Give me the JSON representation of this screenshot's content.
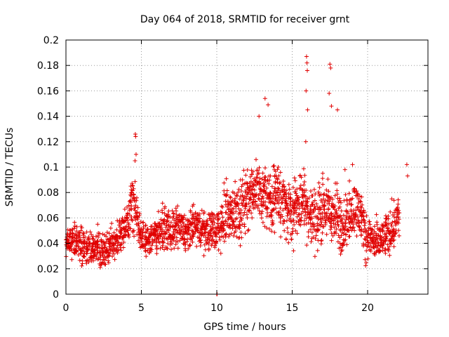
{
  "chart_data": {
    "type": "scatter",
    "title": "Day 064 of 2018, SRMTID for receiver grnt",
    "xlabel": "GPS time / hours",
    "ylabel": "SRMTID / TECUs",
    "xlim": [
      0,
      24
    ],
    "ylim": [
      0,
      0.2
    ],
    "x_ticks": [
      0,
      5,
      10,
      15,
      20
    ],
    "x_tick_labels": [
      "0",
      "5",
      "10",
      "15",
      "20"
    ],
    "y_ticks": [
      0,
      0.02,
      0.04,
      0.06,
      0.08,
      0.1,
      0.12,
      0.14,
      0.16,
      0.18,
      0.2
    ],
    "y_tick_labels": [
      "0",
      "0.02",
      "0.04",
      "0.06",
      "0.08",
      "0.1",
      "0.12",
      "0.14",
      "0.16",
      "0.18",
      "0.2"
    ],
    "grid": true,
    "marker": "plus",
    "color": "#e00000",
    "series": [
      {
        "name": "SRMTID",
        "x": [
          0.0,
          0.1,
          0.2,
          0.3,
          0.4,
          0.5,
          0.6,
          0.7,
          0.8,
          0.9,
          1.0,
          1.1,
          1.2,
          1.3,
          1.4,
          1.5,
          1.6,
          1.7,
          1.8,
          1.9,
          2.0,
          2.1,
          2.2,
          2.3,
          2.4,
          2.5,
          2.6,
          2.7,
          2.8,
          2.9,
          3.0,
          3.1,
          3.2,
          3.3,
          3.4,
          3.5,
          3.6,
          3.7,
          3.8,
          3.9,
          4.0,
          4.1,
          4.2,
          4.3,
          4.4,
          4.5,
          4.6,
          4.7,
          4.8,
          4.9,
          5.0,
          5.1,
          5.2,
          5.3,
          5.4,
          5.5,
          5.6,
          5.7,
          5.8,
          5.9,
          6.0,
          6.1,
          6.2,
          6.3,
          6.4,
          6.5,
          6.6,
          6.7,
          6.8,
          6.9,
          7.0,
          7.1,
          7.2,
          7.3,
          7.4,
          7.5,
          7.6,
          7.7,
          7.8,
          7.9,
          8.0,
          8.1,
          8.2,
          8.3,
          8.4,
          8.5,
          8.6,
          8.7,
          8.8,
          8.9,
          9.0,
          9.1,
          9.2,
          9.3,
          9.4,
          9.5,
          9.6,
          9.7,
          9.8,
          9.9,
          10.0,
          10.1,
          10.2,
          10.3,
          10.4,
          10.5,
          10.6,
          10.7,
          10.8,
          10.9,
          11.0,
          11.1,
          11.2,
          11.3,
          11.4,
          11.5,
          11.6,
          11.7,
          11.8,
          11.9,
          12.0,
          12.1,
          12.2,
          12.3,
          12.4,
          12.5,
          12.6,
          12.7,
          12.8,
          12.9,
          13.0,
          13.1,
          13.2,
          13.3,
          13.4,
          13.5,
          13.6,
          13.7,
          13.8,
          13.9,
          14.0,
          14.1,
          14.2,
          14.3,
          14.4,
          14.5,
          14.6,
          14.7,
          14.8,
          14.9,
          15.0,
          15.1,
          15.2,
          15.3,
          15.4,
          15.5,
          15.6,
          15.7,
          15.8,
          15.9,
          16.0,
          16.1,
          16.2,
          16.3,
          16.4,
          16.5,
          16.6,
          16.7,
          16.8,
          16.9,
          17.0,
          17.1,
          17.2,
          17.3,
          17.4,
          17.5,
          17.6,
          17.7,
          17.8,
          17.9,
          18.0,
          18.1,
          18.2,
          18.3,
          18.4,
          18.5,
          18.6,
          18.7,
          18.8,
          18.9,
          19.0,
          19.1,
          19.2,
          19.3,
          19.4,
          19.5,
          19.6,
          19.7,
          19.8,
          19.9,
          20.0,
          20.1,
          20.2,
          20.3,
          20.4,
          20.5,
          20.6,
          20.7,
          20.8,
          20.9,
          21.0,
          21.1,
          21.2,
          21.3,
          21.4,
          21.5,
          21.6,
          21.7,
          21.8,
          21.9,
          22.0,
          22.1,
          22.2,
          22.3,
          22.4,
          22.5,
          22.6,
          22.7
        ],
        "mid": [
          0.04,
          0.041,
          0.042,
          0.043,
          0.044,
          0.042,
          0.041,
          0.04,
          0.039,
          0.038,
          0.038,
          0.038,
          0.038,
          0.037,
          0.036,
          0.036,
          0.036,
          0.036,
          0.036,
          0.036,
          0.036,
          0.036,
          0.035,
          0.034,
          0.033,
          0.033,
          0.034,
          0.036,
          0.037,
          0.038,
          0.039,
          0.04,
          0.041,
          0.042,
          0.043,
          0.045,
          0.048,
          0.05,
          0.052,
          0.054,
          0.058,
          0.062,
          0.066,
          0.07,
          0.072,
          0.07,
          0.065,
          0.058,
          0.05,
          0.045,
          0.044,
          0.043,
          0.042,
          0.042,
          0.043,
          0.044,
          0.045,
          0.046,
          0.047,
          0.048,
          0.048,
          0.049,
          0.05,
          0.051,
          0.052,
          0.052,
          0.052,
          0.051,
          0.05,
          0.049,
          0.049,
          0.05,
          0.051,
          0.052,
          0.053,
          0.053,
          0.052,
          0.05,
          0.048,
          0.047,
          0.047,
          0.048,
          0.05,
          0.052,
          0.054,
          0.055,
          0.054,
          0.053,
          0.052,
          0.051,
          0.05,
          0.05,
          0.05,
          0.05,
          0.05,
          0.05,
          0.05,
          0.05,
          0.05,
          0.051,
          0.052,
          0.054,
          0.056,
          0.058,
          0.06,
          0.062,
          0.063,
          0.064,
          0.064,
          0.064,
          0.065,
          0.065,
          0.065,
          0.066,
          0.066,
          0.067,
          0.068,
          0.07,
          0.072,
          0.074,
          0.076,
          0.078,
          0.08,
          0.081,
          0.082,
          0.082,
          0.082,
          0.081,
          0.08,
          0.079,
          0.078,
          0.077,
          0.076,
          0.075,
          0.075,
          0.075,
          0.076,
          0.077,
          0.078,
          0.079,
          0.078,
          0.076,
          0.074,
          0.072,
          0.07,
          0.068,
          0.066,
          0.065,
          0.064,
          0.064,
          0.065,
          0.066,
          0.068,
          0.07,
          0.072,
          0.074,
          0.076,
          0.075,
          0.072,
          0.069,
          0.066,
          0.064,
          0.062,
          0.06,
          0.058,
          0.058,
          0.06,
          0.062,
          0.064,
          0.066,
          0.068,
          0.068,
          0.067,
          0.066,
          0.065,
          0.064,
          0.063,
          0.062,
          0.061,
          0.06,
          0.058,
          0.056,
          0.055,
          0.055,
          0.056,
          0.058,
          0.06,
          0.062,
          0.064,
          0.066,
          0.067,
          0.068,
          0.067,
          0.066,
          0.064,
          0.06,
          0.056,
          0.052,
          0.048,
          0.046,
          0.045,
          0.044,
          0.043,
          0.042,
          0.041,
          0.04,
          0.04,
          0.041,
          0.042,
          0.043,
          0.044,
          0.045,
          0.046,
          0.047,
          0.048,
          0.05,
          0.052,
          0.054,
          0.058,
          0.062,
          0.06
        ],
        "spread": [
          0.008,
          0.008,
          0.009,
          0.01,
          0.01,
          0.01,
          0.01,
          0.01,
          0.01,
          0.01,
          0.01,
          0.01,
          0.01,
          0.01,
          0.01,
          0.01,
          0.01,
          0.01,
          0.01,
          0.01,
          0.01,
          0.01,
          0.01,
          0.01,
          0.01,
          0.01,
          0.01,
          0.01,
          0.01,
          0.01,
          0.01,
          0.01,
          0.01,
          0.01,
          0.01,
          0.01,
          0.01,
          0.01,
          0.011,
          0.012,
          0.012,
          0.012,
          0.014,
          0.016,
          0.018,
          0.016,
          0.014,
          0.012,
          0.011,
          0.01,
          0.01,
          0.01,
          0.01,
          0.01,
          0.01,
          0.01,
          0.01,
          0.01,
          0.011,
          0.011,
          0.011,
          0.011,
          0.011,
          0.011,
          0.011,
          0.011,
          0.011,
          0.011,
          0.011,
          0.011,
          0.011,
          0.011,
          0.011,
          0.011,
          0.011,
          0.011,
          0.011,
          0.011,
          0.011,
          0.011,
          0.011,
          0.011,
          0.011,
          0.011,
          0.011,
          0.011,
          0.011,
          0.011,
          0.011,
          0.011,
          0.011,
          0.011,
          0.011,
          0.011,
          0.011,
          0.011,
          0.012,
          0.012,
          0.012,
          0.013,
          0.013,
          0.014,
          0.014,
          0.015,
          0.016,
          0.016,
          0.016,
          0.016,
          0.016,
          0.016,
          0.016,
          0.016,
          0.016,
          0.016,
          0.017,
          0.017,
          0.018,
          0.018,
          0.018,
          0.018,
          0.018,
          0.018,
          0.018,
          0.018,
          0.018,
          0.018,
          0.018,
          0.018,
          0.018,
          0.018,
          0.018,
          0.018,
          0.018,
          0.018,
          0.018,
          0.018,
          0.018,
          0.018,
          0.018,
          0.018,
          0.018,
          0.018,
          0.018,
          0.018,
          0.018,
          0.018,
          0.018,
          0.018,
          0.018,
          0.018,
          0.018,
          0.018,
          0.018,
          0.018,
          0.018,
          0.018,
          0.018,
          0.018,
          0.018,
          0.018,
          0.018,
          0.018,
          0.018,
          0.018,
          0.018,
          0.018,
          0.018,
          0.018,
          0.018,
          0.018,
          0.018,
          0.018,
          0.018,
          0.018,
          0.018,
          0.018,
          0.018,
          0.018,
          0.018,
          0.018,
          0.018,
          0.018,
          0.018,
          0.016,
          0.016,
          0.016,
          0.016,
          0.016,
          0.016,
          0.015,
          0.015,
          0.015,
          0.015,
          0.015,
          0.015,
          0.015,
          0.014,
          0.014,
          0.014,
          0.013,
          0.013,
          0.012,
          0.012,
          0.012,
          0.012,
          0.012,
          0.012,
          0.012,
          0.012,
          0.012,
          0.012,
          0.012,
          0.012,
          0.012,
          0.012,
          0.012,
          0.012,
          0.012,
          0.012,
          0.012,
          0.012,
          0.012,
          0.012,
          0.013,
          0.014,
          0.015,
          0.016,
          0.016
        ],
        "peaks_x": [
          4.6,
          4.62,
          4.65,
          4.58,
          15.95,
          15.98,
          16.0,
          15.92,
          16.02,
          15.9,
          17.5,
          17.55,
          17.45,
          17.6,
          18.0,
          13.2,
          13.4,
          12.8,
          21.6,
          22.6,
          22.65,
          4.3,
          18.5,
          19.0,
          10.0,
          10.02
        ],
        "peaks_y": [
          0.126,
          0.124,
          0.11,
          0.105,
          0.187,
          0.182,
          0.176,
          0.16,
          0.145,
          0.12,
          0.181,
          0.178,
          0.158,
          0.148,
          0.145,
          0.154,
          0.149,
          0.14,
          0.075,
          0.102,
          0.093,
          0.085,
          0.098,
          0.102,
          0.0,
          0.0
        ]
      }
    ]
  }
}
